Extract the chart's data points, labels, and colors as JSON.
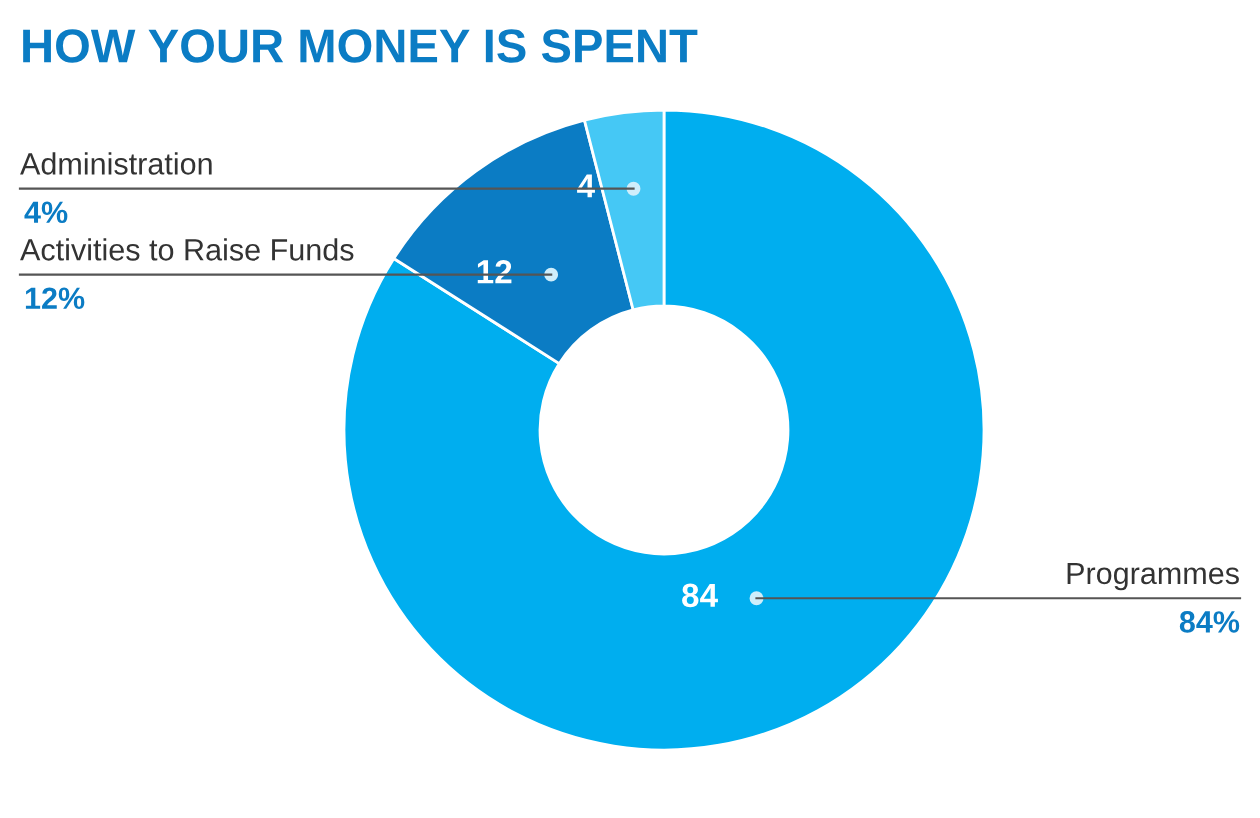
{
  "chart_data": {
    "type": "donut",
    "title": "HOW YOUR MONEY IS SPENT",
    "categories": [
      "Programmes",
      "Activities to Raise Funds",
      "Administration"
    ],
    "values": [
      84,
      12,
      4
    ],
    "colors": [
      "#00aeef",
      "#0b7cc4",
      "#45c8f5"
    ],
    "data_labels": true,
    "value_labels": [
      "84",
      "12",
      "4"
    ],
    "annotations": [
      "84%",
      "12%",
      "4%"
    ]
  }
}
